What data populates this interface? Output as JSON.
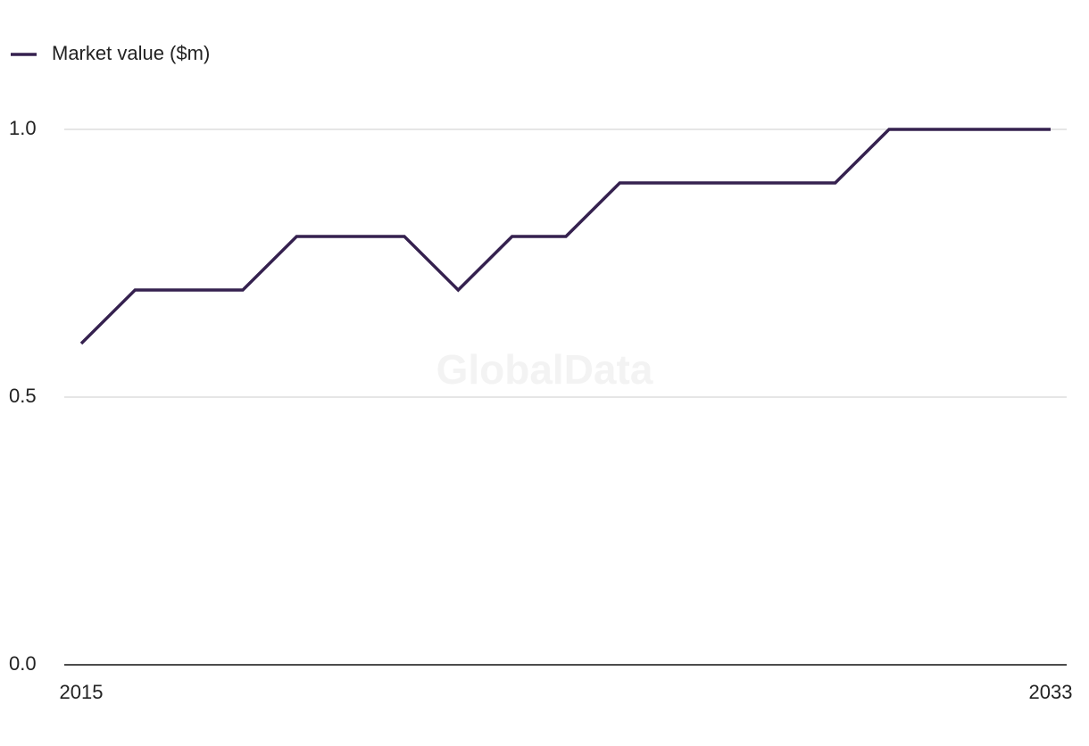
{
  "chart_data": {
    "type": "line",
    "watermark": "GlobalData",
    "x": [
      2015,
      2016,
      2017,
      2018,
      2019,
      2020,
      2021,
      2022,
      2023,
      2024,
      2025,
      2026,
      2027,
      2028,
      2029,
      2030,
      2031,
      2032,
      2033
    ],
    "series": [
      {
        "name": "Market value ($m)",
        "color": "#35214f",
        "values": [
          0.6,
          0.7,
          0.7,
          0.7,
          0.8,
          0.8,
          0.8,
          0.7,
          0.8,
          0.8,
          0.9,
          0.9,
          0.9,
          0.9,
          0.9,
          1.0,
          1.0,
          1.0,
          1.0
        ]
      }
    ],
    "xlim": [
      2015,
      2033
    ],
    "xticks": [
      2015,
      2033
    ],
    "ylim": [
      0,
      1
    ],
    "yticks": [
      {
        "value": 0,
        "label": "0.0"
      },
      0.5,
      {
        "value": 1,
        "label": "1.0"
      }
    ],
    "grid": true,
    "legend": "top-left"
  }
}
